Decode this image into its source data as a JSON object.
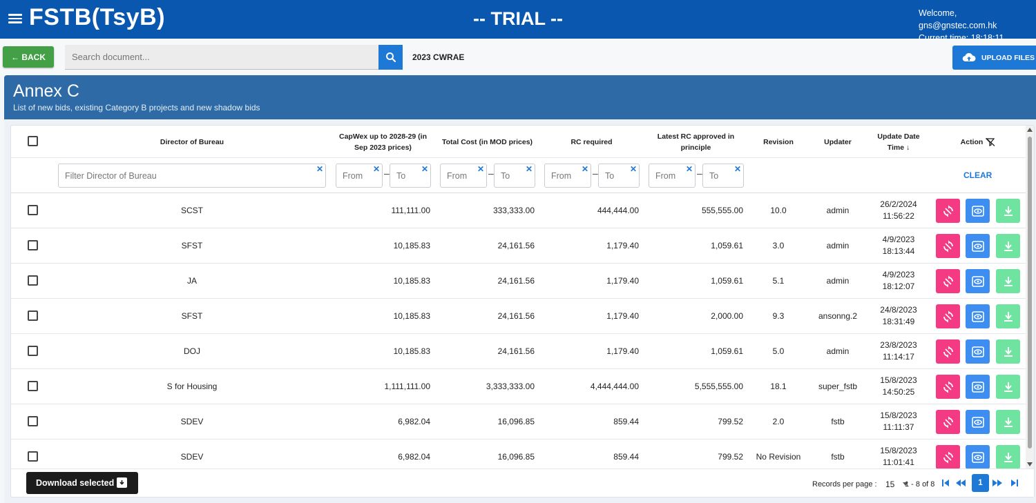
{
  "header": {
    "app_title": "FSTB(TsyB)",
    "banner": "-- TRIAL --",
    "welcome": "Welcome, gns@gnstec.com.hk",
    "current_time": "Current time: 18:18:11"
  },
  "toolbar": {
    "back_label": "← BACK",
    "search_placeholder": "Search document...",
    "document_name": "2023 CWRAE",
    "upload_label": "UPLOAD FILES"
  },
  "section": {
    "title": "Annex C",
    "subtitle": "List of new bids, existing Category B projects and new shadow bids"
  },
  "table": {
    "columns": {
      "director": "Director of Bureau",
      "capwex": "CapWex up to 2028-29 (in Sep 2023 prices)",
      "total_cost": "Total Cost (in MOD prices)",
      "rc_required": "RC required",
      "latest_rc": "Latest RC approved in principle",
      "revision": "Revision",
      "updater": "Updater",
      "update_time": "Update Date Time ↓",
      "action": "Action"
    },
    "filters": {
      "director_placeholder": "Filter Director of Bureau",
      "from": "From",
      "to": "To",
      "clear_label": "CLEAR"
    },
    "rows": [
      {
        "director": "SCST",
        "capwex": "111,111.00",
        "total_cost": "333,333.00",
        "rc_required": "444,444.00",
        "latest_rc": "555,555.00",
        "revision": "10.0",
        "updater": "admin",
        "date": "26/2/2024",
        "time": "11:56:22"
      },
      {
        "director": "SFST",
        "capwex": "10,185.83",
        "total_cost": "24,161.56",
        "rc_required": "1,179.40",
        "latest_rc": "1,059.61",
        "revision": "3.0",
        "updater": "admin",
        "date": "4/9/2023",
        "time": "18:13:44"
      },
      {
        "director": "JA",
        "capwex": "10,185.83",
        "total_cost": "24,161.56",
        "rc_required": "1,179.40",
        "latest_rc": "1,059.61",
        "revision": "5.1",
        "updater": "admin",
        "date": "4/9/2023",
        "time": "18:12:07"
      },
      {
        "director": "SFST",
        "capwex": "10,185.83",
        "total_cost": "24,161.56",
        "rc_required": "1,179.40",
        "latest_rc": "2,000.00",
        "revision": "9.3",
        "updater": "ansonng.2",
        "date": "24/8/2023",
        "time": "18:31:49"
      },
      {
        "director": "DOJ",
        "capwex": "10,185.83",
        "total_cost": "24,161.56",
        "rc_required": "1,179.40",
        "latest_rc": "1,059.61",
        "revision": "5.0",
        "updater": "admin",
        "date": "23/8/2023",
        "time": "11:14:17"
      },
      {
        "director": "S for Housing",
        "capwex": "1,111,111.00",
        "total_cost": "3,333,333.00",
        "rc_required": "4,444,444.00",
        "latest_rc": "5,555,555.00",
        "revision": "18.1",
        "updater": "super_fstb",
        "date": "15/8/2023",
        "time": "14:50:25"
      },
      {
        "director": "SDEV",
        "capwex": "6,982.04",
        "total_cost": "16,096.85",
        "rc_required": "859.44",
        "latest_rc": "799.52",
        "revision": "2.0",
        "updater": "fstb",
        "date": "15/8/2023",
        "time": "11:11:37"
      },
      {
        "director": "SDEV",
        "capwex": "6,982.04",
        "total_cost": "16,096.85",
        "rc_required": "859.44",
        "latest_rc": "799.52",
        "revision": "No Revision",
        "updater": "fstb",
        "date": "15/8/2023",
        "time": "11:01:41"
      }
    ]
  },
  "footer": {
    "download_label": "Download selected",
    "records_per_page_label": "Records per page :",
    "records_per_page_value": "15",
    "range": "1 - 8 of 8",
    "current_page": "1"
  },
  "colors": {
    "header_bg": "#0a57b0",
    "section_bg": "#2d6aa6",
    "back_green": "#43a047",
    "accent_blue": "#1e78d6",
    "action_pink": "#f53a84",
    "action_blue": "#3d8ef0",
    "action_green": "#6fe3a0"
  },
  "icons": {
    "menu": "hamburger-icon",
    "search": "magnifier-icon",
    "upload": "cloud-upload-icon",
    "action_filter": "filter-off-icon",
    "row_revision": "sync-icon",
    "row_view": "eye-icon",
    "row_download": "download-icon"
  }
}
